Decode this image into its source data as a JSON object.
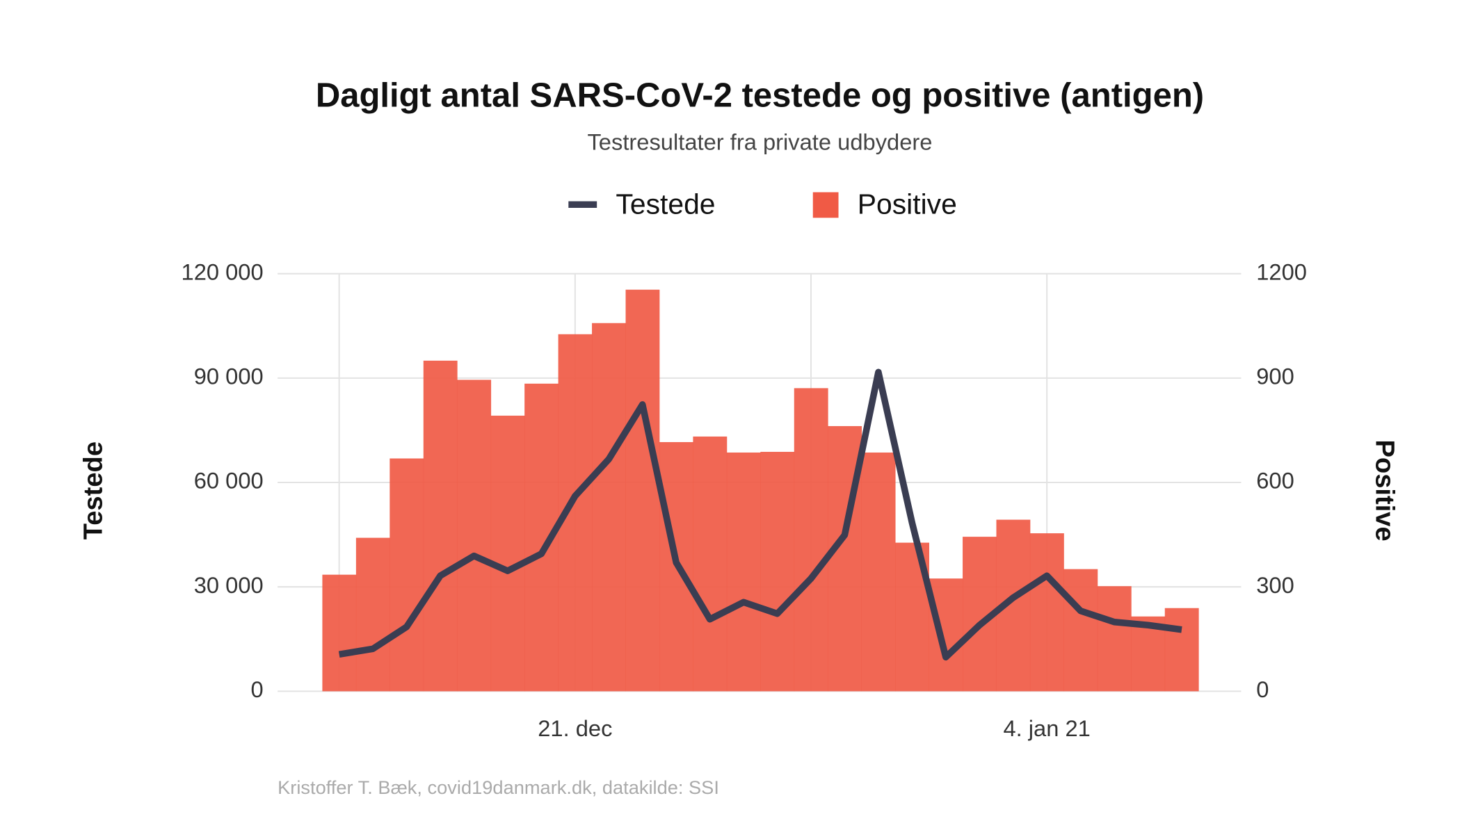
{
  "chart_data": {
    "type": "bar",
    "title": "Dagligt antal SARS-CoV-2 testede og positive (antigen)",
    "subtitle": "Testresultater fra private udbydere",
    "ylabel": "Testede",
    "y2label": "Positive",
    "caption": "Kristoffer T. Bæk, covid19danmark.dk, datakilde: SSI",
    "categories": [
      null,
      null,
      null,
      null,
      null,
      null,
      null,
      "21. dec",
      null,
      null,
      null,
      null,
      null,
      null,
      null,
      null,
      null,
      null,
      null,
      null,
      null,
      "4. jan 21",
      null,
      null,
      null,
      null
    ],
    "series": [
      {
        "name": "Testede",
        "type": "line",
        "color": "#3a3d52",
        "values": [
          10600,
          12200,
          18500,
          33200,
          38900,
          34600,
          39500,
          56100,
          66700,
          82400,
          37000,
          20700,
          25600,
          22300,
          32400,
          44900,
          91700,
          48400,
          9800,
          19000,
          26900,
          33200,
          23100,
          19900,
          19000,
          17700
        ]
      },
      {
        "name": "Positive",
        "type": "bar",
        "axis": "y2",
        "color": "#f05a45",
        "values": [
          335,
          441,
          669,
          950,
          895,
          792,
          884,
          1026,
          1058,
          1154,
          716,
          732,
          686,
          688,
          871,
          762,
          686,
          427,
          324,
          444,
          493,
          454,
          351,
          302,
          215,
          239
        ]
      }
    ],
    "ylim": [
      0,
      120000
    ],
    "yticks": [
      {
        "value": 0,
        "label": "0"
      },
      {
        "value": 30000,
        "label": "30 000"
      },
      {
        "value": 60000,
        "label": "60 000"
      },
      {
        "value": 90000,
        "label": "90 000"
      },
      {
        "value": 120000,
        "label": "120 000"
      }
    ],
    "y2lim": [
      0,
      1200
    ],
    "y2ticks": [
      0,
      300,
      600,
      900,
      1200
    ],
    "grid": true,
    "legend": "top"
  }
}
